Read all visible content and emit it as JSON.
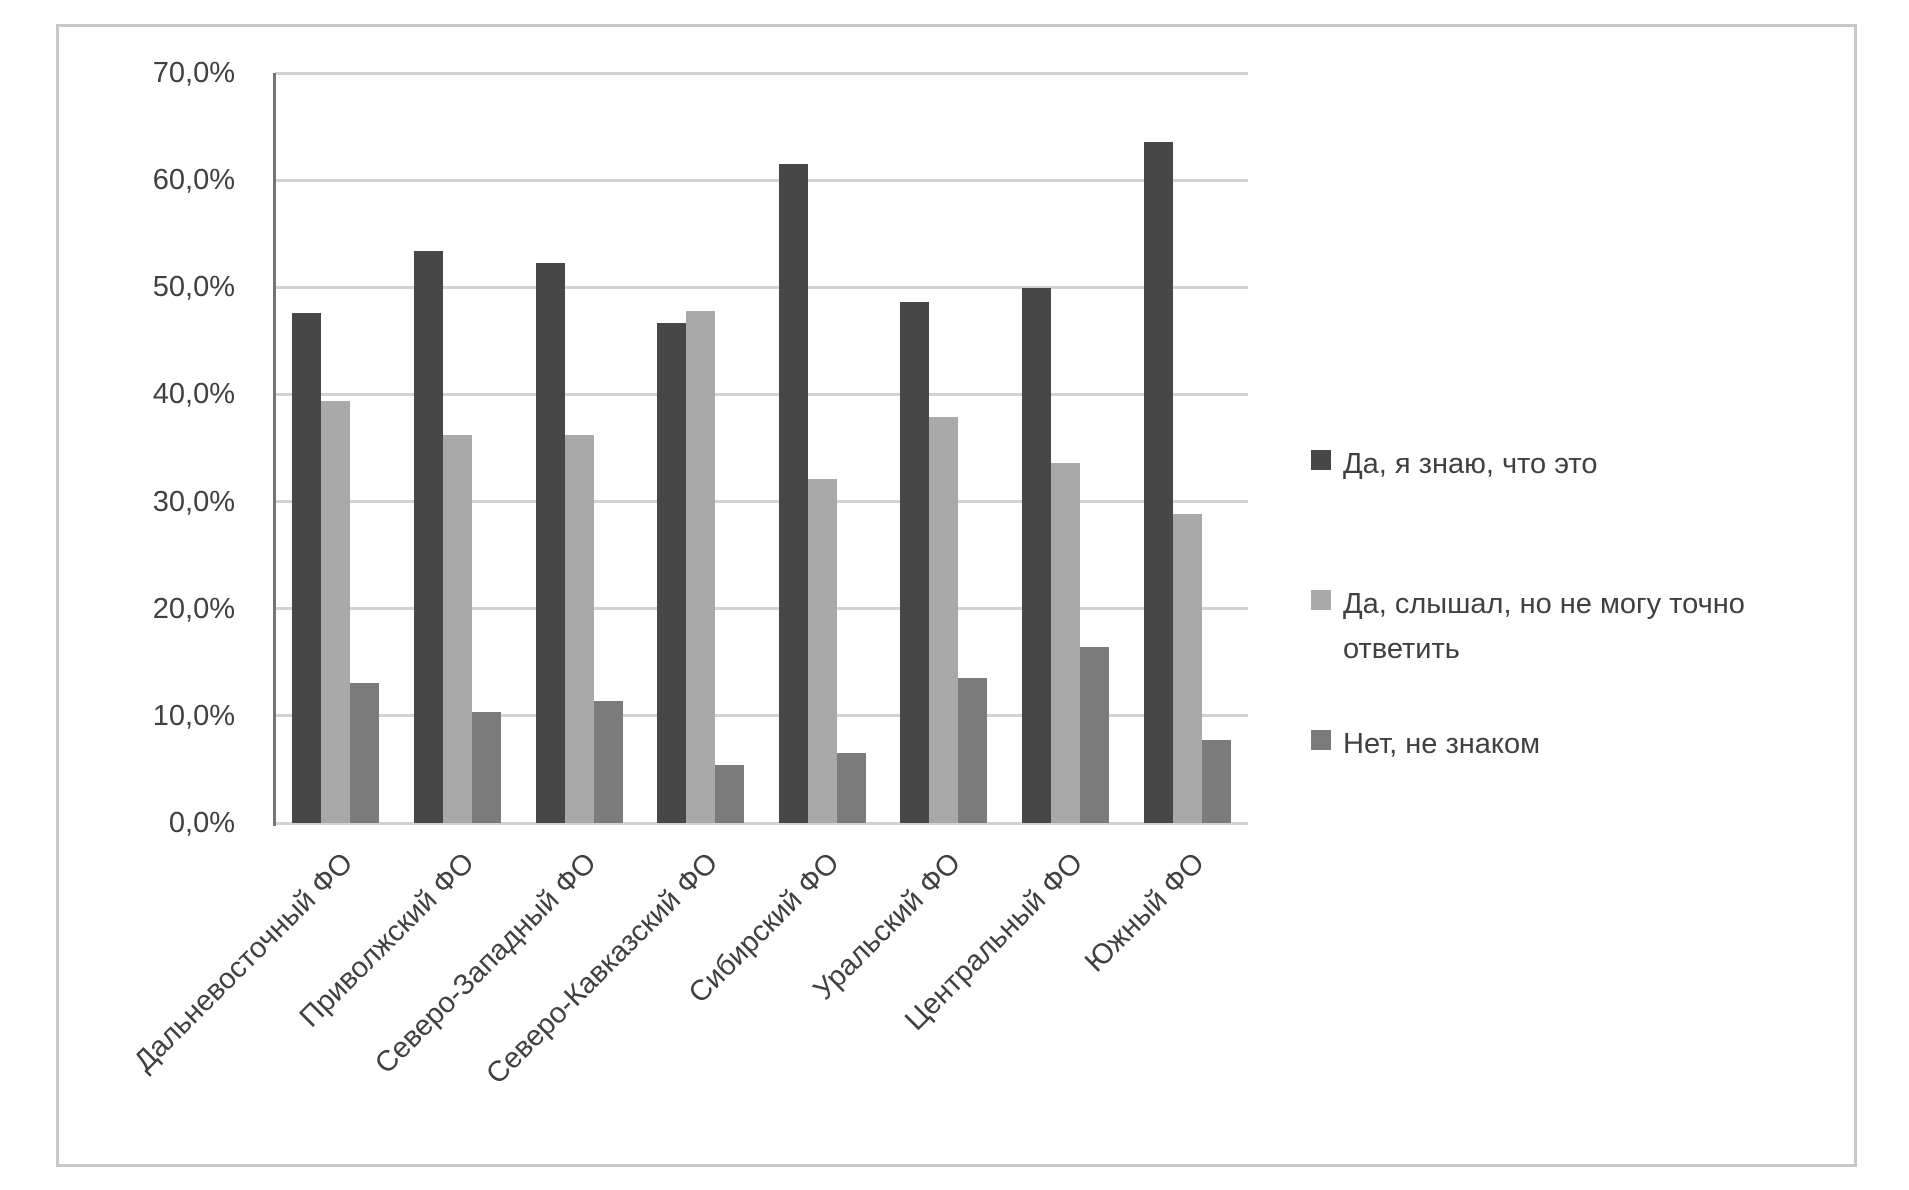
{
  "chart_data": {
    "type": "bar",
    "title": "",
    "xlabel": "",
    "ylabel": "",
    "ylim": [
      0,
      70
    ],
    "grid": true,
    "legend_position": "right",
    "y_ticks": [
      "0,0%",
      "10,0%",
      "20,0%",
      "30,0%",
      "40,0%",
      "50,0%",
      "60,0%",
      "70,0%"
    ],
    "categories": [
      "Дальневосточный ФО",
      "Приволжский ФО",
      "Северо-Западный ФО",
      "Северо-Кавказский ФО",
      "Сибирский ФО",
      "Уральский ФО",
      "Центральный ФО",
      "Южный ФО"
    ],
    "series": [
      {
        "name": "Да, я знаю, что это",
        "color": "#474747",
        "values": [
          47.6,
          53.4,
          52.3,
          46.7,
          61.5,
          48.6,
          49.9,
          63.6
        ]
      },
      {
        "name": "Да, слышал, но не могу точно ответить",
        "color": "#a9a9a9",
        "values": [
          39.4,
          36.2,
          36.2,
          47.8,
          32.1,
          37.9,
          33.6,
          28.8
        ]
      },
      {
        "name": "Нет, не знаком",
        "color": "#7b7b7b",
        "values": [
          13.1,
          10.4,
          11.4,
          5.4,
          6.5,
          13.5,
          16.4,
          7.7
        ]
      }
    ],
    "colors": {
      "gridline": "#d2d2d2",
      "axis_line": "#757575",
      "frame_border": "#c9c9c9",
      "text": "#404040"
    }
  }
}
